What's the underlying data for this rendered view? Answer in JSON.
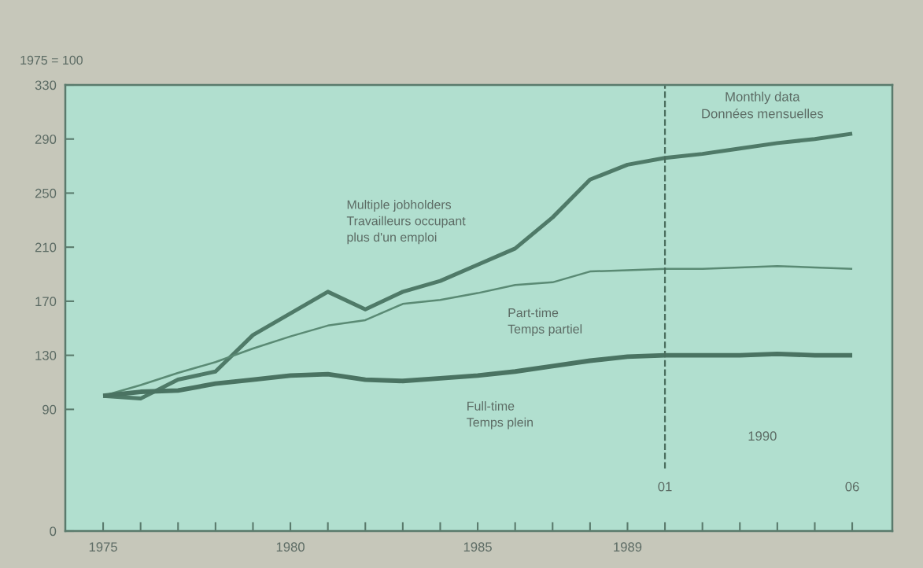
{
  "chart_data": {
    "type": "line",
    "ylabel": "1975 = 100",
    "categories": [
      "1975",
      null,
      null,
      null,
      null,
      "1980",
      null,
      null,
      null,
      null,
      "1985",
      null,
      null,
      null,
      "1989",
      "01",
      null,
      null,
      null,
      null,
      "06"
    ],
    "series": [
      {
        "name": "Multiple jobholders\nTravailleurs occupant\nplus d'un emploi",
        "color": "#4f7a68",
        "values": [
          100,
          98,
          112,
          118,
          145,
          161,
          177,
          164,
          177,
          185,
          197,
          209,
          232,
          260,
          271,
          276,
          279,
          283,
          287,
          290,
          294
        ]
      },
      {
        "name": "Part-time\nTemps partiel",
        "color": "#5a8a74",
        "values": [
          100,
          108,
          117,
          125,
          135,
          144,
          152,
          156,
          168,
          171,
          176,
          182,
          184,
          192,
          193,
          194,
          194,
          195,
          196,
          195,
          194
        ]
      },
      {
        "name": "Full-time\nTemps plein",
        "color": "#4a7362",
        "values": [
          100,
          103,
          104,
          109,
          112,
          115,
          116,
          112,
          111,
          113,
          115,
          118,
          122,
          126,
          129,
          130,
          130,
          130,
          131,
          130,
          130
        ]
      }
    ],
    "ylim": [
      0,
      330
    ],
    "yticks": [
      0,
      90,
      130,
      170,
      210,
      250,
      290,
      330
    ],
    "ref_lines": [
      {
        "axis": "x",
        "value": "01",
        "line_style": "dashed",
        "color": "#4a6e5e"
      }
    ],
    "annotations": [
      "Monthly data\nDonnées mensuelles",
      "1990"
    ],
    "grid": false,
    "legend": false,
    "marker": "none",
    "line_style": "solid"
  }
}
